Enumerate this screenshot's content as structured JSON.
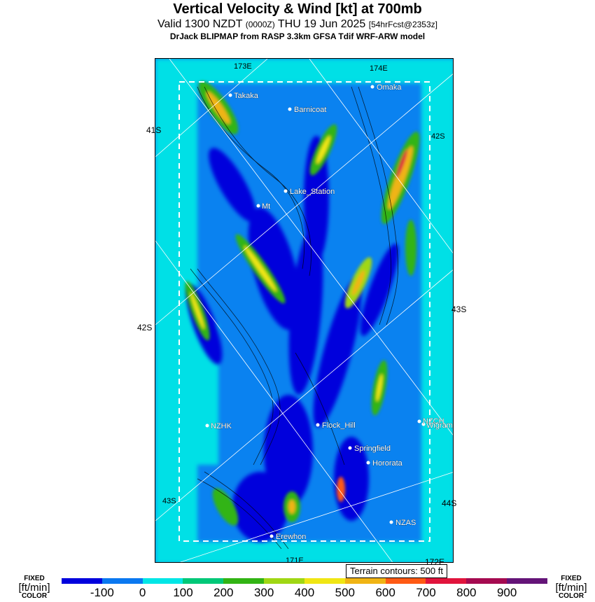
{
  "header": {
    "title": "Vertical Velocity & Wind [kt] at 700mb",
    "valid_main": "Valid 1300 NZDT",
    "valid_zulu": "(0000Z)",
    "valid_date": "THU 19 Jun 2025",
    "forecast": "[54hrFcst@2353z]",
    "model": "DrJack BLIPMAP from RASP 3.3km GFSA Tdif WRF-ARW model"
  },
  "map": {
    "grid_labels": [
      "173E",
      "174E",
      "41S",
      "42S",
      "42S",
      "43S",
      "43S",
      "44S",
      "171E",
      "172E"
    ],
    "stations": [
      "Takaka",
      "Omaka",
      "Barnicoat",
      "Lake_Station",
      "Mt",
      "NZHK",
      "Flock_Hill",
      "NZCH",
      "Wigram",
      "Springfield",
      "Hororata",
      "NZAS",
      "Erewhon"
    ],
    "terrain_note": "Terrain contours: 500 ft"
  },
  "legend": {
    "left_top": "FIXED",
    "left_unit": "[ft/min]",
    "left_bottom": "COLOR",
    "right_top": "FIXED",
    "right_unit": "[ft/min]",
    "right_bottom": "COLOR",
    "ticks": [
      "-100",
      "0",
      "100",
      "200",
      "300",
      "400",
      "500",
      "600",
      "700",
      "800",
      "900"
    ],
    "colors": [
      "#0000dd",
      "#0a78f0",
      "#00e6e6",
      "#00c878",
      "#32b414",
      "#a0d714",
      "#f0e614",
      "#f0b414",
      "#ff5a14",
      "#e1143c",
      "#a50a50",
      "#641478"
    ]
  }
}
